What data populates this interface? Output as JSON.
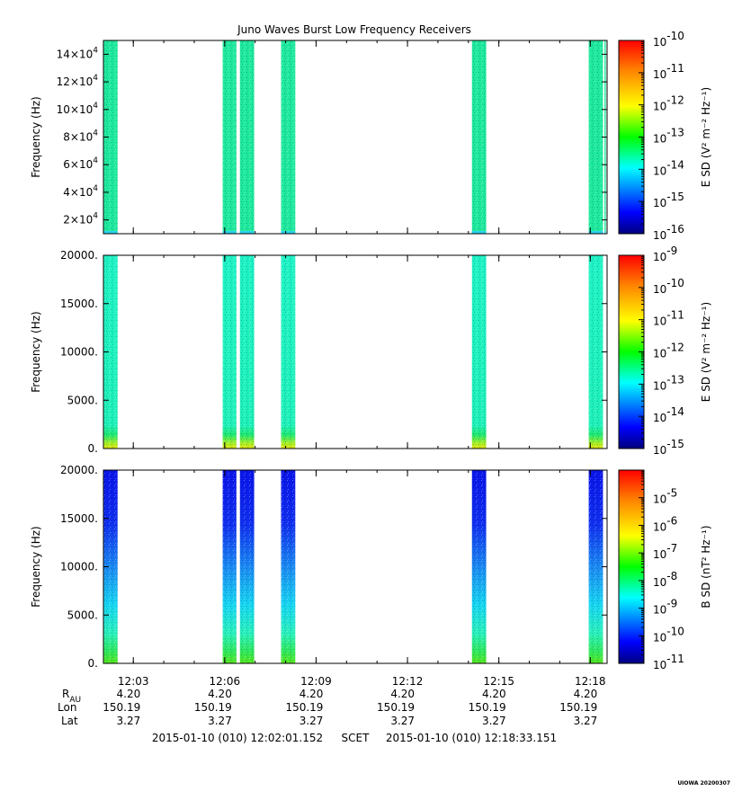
{
  "title": "Juno Waves Burst Low Frequency Receivers",
  "footer": {
    "start": "2015-01-10 (010) 12:02:01.152",
    "frame": "SCET",
    "end": "2015-01-10 (010) 12:18:33.151",
    "credit": "UIOWA 20200307"
  },
  "ephemeris": {
    "labels": {
      "r": "R",
      "r_sub": "AU",
      "lon": "Lon",
      "lat": "Lat"
    },
    "r": [
      "4.20",
      "4.20",
      "4.20",
      "4.20",
      "4.20",
      "4.20"
    ],
    "lon": [
      "150.19",
      "150.19",
      "150.19",
      "150.19",
      "150.19",
      "150.19"
    ],
    "lat": [
      "3.27",
      "3.27",
      "3.27",
      "3.27",
      "3.27",
      "3.27"
    ]
  },
  "x_ticks": [
    "12:03",
    "12:06",
    "12:09",
    "12:12",
    "12:15",
    "12:18"
  ],
  "colors": {
    "colormap": [
      "#00007f",
      "#0000ff",
      "#00ffff",
      "#00ff00",
      "#ffff00",
      "#ff7f00",
      "#ff0000"
    ],
    "blue_data": "#1a22e6"
  },
  "chart_data": [
    {
      "type": "heatmap",
      "panel": "top",
      "title": "Juno Waves Burst Low Frequency Receivers",
      "xlabel": "",
      "ylabel": "Frequency (Hz)",
      "x_range": [
        "12:02:01.152",
        "12:18:33.151"
      ],
      "ylim": [
        10000,
        150000
      ],
      "y_ticks": [
        {
          "value": 20000,
          "mant": "2×10",
          "exp": "4"
        },
        {
          "value": 40000,
          "mant": "4×10",
          "exp": "4"
        },
        {
          "value": 60000,
          "mant": "6×10",
          "exp": "4"
        },
        {
          "value": 80000,
          "mant": "8×10",
          "exp": "4"
        },
        {
          "value": 100000,
          "mant": "10×10",
          "exp": "4"
        },
        {
          "value": 120000,
          "mant": "12×10",
          "exp": "4"
        },
        {
          "value": 140000,
          "mant": "14×10",
          "exp": "4"
        }
      ],
      "colorbar": {
        "label": "E SD (V² m⁻² Hz⁻¹)",
        "log_range": [
          -16,
          -10
        ],
        "ticks": [
          "10^-10",
          "10^-11",
          "10^-12",
          "10^-13",
          "10^-14",
          "10^-15",
          "10^-16"
        ]
      },
      "bursts": [
        {
          "start": "12:02:01",
          "end": "12:02:29",
          "level": -13.6
        },
        {
          "start": "12:05:56",
          "end": "12:06:23",
          "level": -13.6
        },
        {
          "start": "12:06:30",
          "end": "12:06:58",
          "level": -13.6
        },
        {
          "start": "12:07:51",
          "end": "12:08:19",
          "level": -13.6
        },
        {
          "start": "12:14:07",
          "end": "12:14:35",
          "level": -13.6
        },
        {
          "start": "12:17:57",
          "end": "12:18:25",
          "level": -13.6
        },
        {
          "start": "12:18:28",
          "end": "12:18:30",
          "level": -13.6
        }
      ]
    },
    {
      "type": "heatmap",
      "panel": "middle",
      "xlabel": "",
      "ylabel": "Frequency (Hz)",
      "x_range": [
        "12:02:01.152",
        "12:18:33.151"
      ],
      "ylim": [
        0,
        20000
      ],
      "y_ticks": [
        {
          "value": 0,
          "label": "0."
        },
        {
          "value": 5000,
          "label": "5000."
        },
        {
          "value": 10000,
          "label": "10000."
        },
        {
          "value": 15000,
          "label": "15000."
        },
        {
          "value": 20000,
          "label": "20000."
        }
      ],
      "colorbar": {
        "label": "E SD (V² m⁻² Hz⁻¹)",
        "log_range": [
          -15,
          -9
        ],
        "ticks": [
          "10^-9",
          "10^-10",
          "10^-11",
          "10^-12",
          "10^-13",
          "10^-14",
          "10^-15"
        ]
      },
      "bursts": [
        {
          "start": "12:02:01",
          "end": "12:02:29",
          "level": -12.8
        },
        {
          "start": "12:05:56",
          "end": "12:06:23",
          "level": -12.8
        },
        {
          "start": "12:06:30",
          "end": "12:06:58",
          "level": -12.8
        },
        {
          "start": "12:07:51",
          "end": "12:08:19",
          "level": -12.8
        },
        {
          "start": "12:14:07",
          "end": "12:14:35",
          "level": -12.8
        },
        {
          "start": "12:17:57",
          "end": "12:18:25",
          "level": -12.8
        }
      ]
    },
    {
      "type": "heatmap",
      "panel": "bottom",
      "xlabel": "",
      "ylabel": "Frequency (Hz)",
      "x_range": [
        "12:02:01.152",
        "12:18:33.151"
      ],
      "ylim": [
        0,
        20000
      ],
      "y_ticks": [
        {
          "value": 0,
          "label": "0."
        },
        {
          "value": 5000,
          "label": "5000."
        },
        {
          "value": 10000,
          "label": "10000."
        },
        {
          "value": 15000,
          "label": "15000."
        },
        {
          "value": 20000,
          "label": "20000."
        }
      ],
      "colorbar": {
        "label": "B SD (nT² Hz⁻¹)",
        "log_range": [
          -11,
          -4
        ],
        "ticks": [
          "10^-5",
          "10^-6",
          "10^-7",
          "10^-8",
          "10^-9",
          "10^-10",
          "10^-11"
        ]
      },
      "bursts": [
        {
          "start": "12:02:01",
          "end": "12:02:29",
          "level": -10.3
        },
        {
          "start": "12:05:56",
          "end": "12:06:23",
          "level": -10.3
        },
        {
          "start": "12:06:30",
          "end": "12:06:58",
          "level": -10.3
        },
        {
          "start": "12:07:51",
          "end": "12:08:19",
          "level": -10.3
        },
        {
          "start": "12:14:07",
          "end": "12:14:35",
          "level": -10.3
        },
        {
          "start": "12:17:57",
          "end": "12:18:25",
          "level": -10.3
        }
      ]
    }
  ]
}
